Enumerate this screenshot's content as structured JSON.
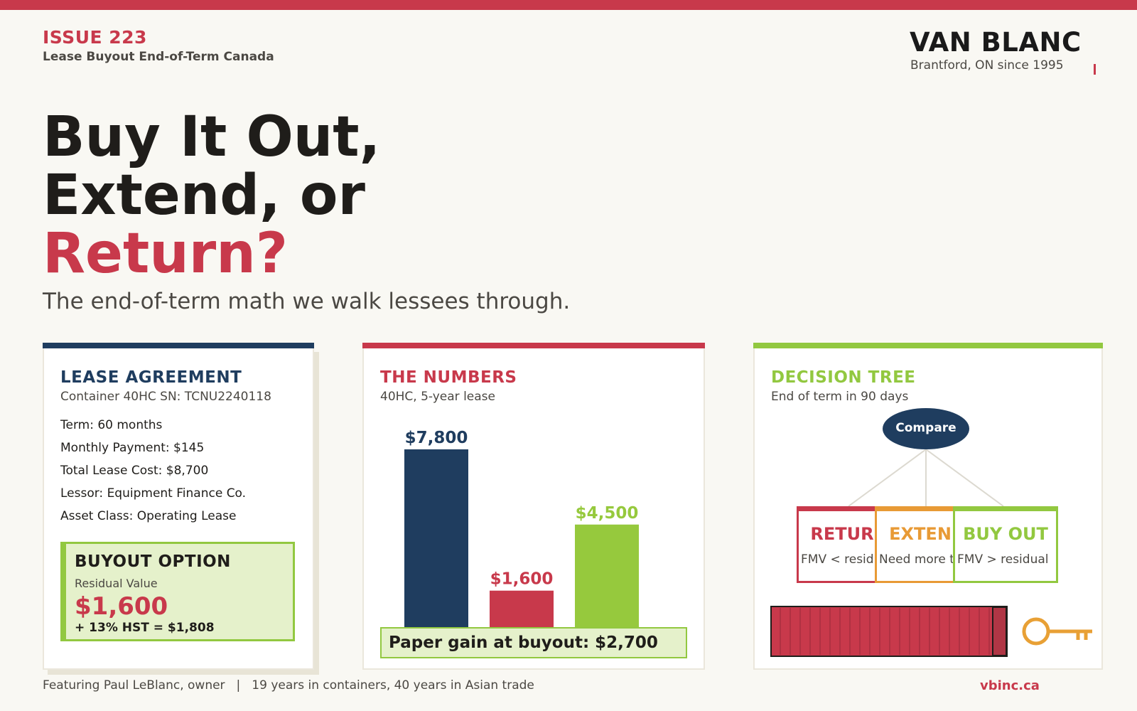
{
  "header": {
    "issue": "ISSUE 223",
    "issue_subtitle": "Lease Buyout End-of-Term Canada",
    "brand": "VAN BLANC",
    "brand_subtitle": "Brantford, ON since 1995"
  },
  "headline": {
    "line1": "Buy It Out,",
    "line2": "Extend, or",
    "line3": "Return?",
    "subtitle": "The end-of-term math we walk lessees through."
  },
  "lease": {
    "title": "LEASE AGREEMENT",
    "subtitle": "Container 40HC SN: TCNU2240118",
    "rows": [
      "Term: 60 months",
      "Monthly Payment: $145",
      "Total Lease Cost: $8,700",
      "Lessor: Equipment Finance Co.",
      "Asset Class: Operating Lease"
    ],
    "buyout": {
      "title": "BUYOUT OPTION",
      "label": "Residual Value",
      "value": "$1,600",
      "tax": "+ 13% HST = $1,808"
    }
  },
  "numbers": {
    "title": "THE NUMBERS",
    "subtitle": "40HC, 5-year lease",
    "gain": "Paper gain at buyout: $2,700"
  },
  "chart_data": {
    "type": "bar",
    "title": "THE NUMBERS",
    "subtitle": "40HC, 5-year lease",
    "values": [
      7800,
      1600,
      4500
    ],
    "labels": [
      "$7,800",
      "$1,600",
      "$4,500"
    ],
    "colors": [
      "#1f3d5f",
      "#c8394b",
      "#96c93d"
    ],
    "ylim": [
      0,
      7800
    ],
    "grid": false
  },
  "tree": {
    "title": "DECISION TREE",
    "subtitle": "End of term in 90 days",
    "root": "Compare",
    "options": [
      {
        "title": "RETURN",
        "desc": "FMV < residual",
        "color": "#c8394b"
      },
      {
        "title": "EXTEND",
        "desc": "Need more time",
        "color": "#e89a35"
      },
      {
        "title": "BUY OUT",
        "desc": "FMV > residual",
        "color": "#92c840"
      }
    ],
    "container_color": "#c8394b",
    "key_color": "#e8a035"
  },
  "footer": {
    "featuring": "Featuring Paul LeBlanc, owner",
    "separator": "|",
    "tagline": "19 years in containers, 40 years in Asian trade",
    "link": "vbinc.ca"
  },
  "colors": {
    "accent": "#c8394b",
    "navy": "#1f3d5f",
    "green": "#92c840",
    "orange": "#e89a35",
    "background": "#f9f8f3"
  }
}
